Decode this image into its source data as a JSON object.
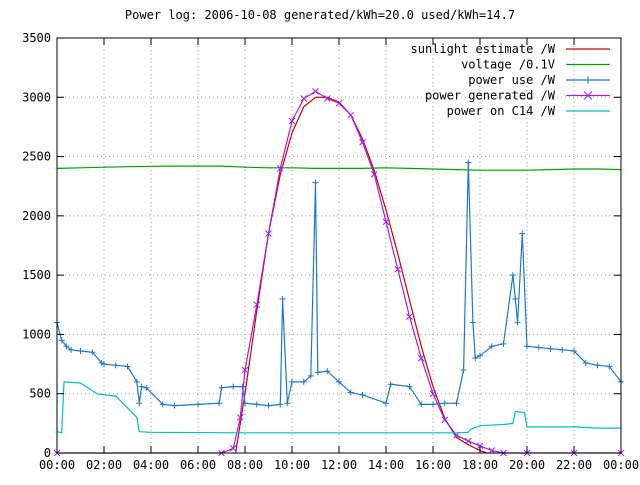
{
  "chart_data": {
    "type": "line",
    "title": "Power log: 2006-10-08 generated/kWh=20.0 used/kWh=14.7",
    "xlabel": "",
    "ylabel": "",
    "x_ticks": [
      "00:00",
      "02:00",
      "04:00",
      "06:00",
      "08:00",
      "10:00",
      "12:00",
      "14:00",
      "16:00",
      "18:00",
      "20:00",
      "22:00",
      "00:00"
    ],
    "xlim_hours": [
      0,
      24
    ],
    "ylim": [
      0,
      3500
    ],
    "y_ticks": [
      0,
      500,
      1000,
      1500,
      2000,
      2500,
      3000,
      3500
    ],
    "grid": true,
    "legend_position": "top-right",
    "series": [
      {
        "name": "sunlight estimate /W",
        "color": "#cc0000",
        "marker": "none",
        "x": [
          7.6,
          8.0,
          8.5,
          9.0,
          9.5,
          10.0,
          10.5,
          11.0,
          11.5,
          12.0,
          12.5,
          13.0,
          13.5,
          14.0,
          14.5,
          15.0,
          15.5,
          16.0,
          16.5,
          17.0,
          17.5,
          18.0,
          18.3
        ],
        "values": [
          0,
          500,
          1200,
          1850,
          2350,
          2700,
          2920,
          3000,
          3000,
          2960,
          2850,
          2650,
          2380,
          2050,
          1680,
          1290,
          900,
          560,
          290,
          130,
          70,
          20,
          0
        ]
      },
      {
        "name": "voltage /0.1V",
        "color": "#00a000",
        "marker": "none",
        "x": [
          0,
          1,
          2,
          3,
          4,
          5,
          6,
          7,
          8,
          9,
          10,
          11,
          12,
          13,
          14,
          15,
          16,
          17,
          18,
          19,
          20,
          21,
          22,
          23,
          24
        ],
        "values": [
          2400,
          2405,
          2410,
          2415,
          2418,
          2420,
          2420,
          2420,
          2410,
          2405,
          2405,
          2400,
          2400,
          2400,
          2405,
          2400,
          2395,
          2390,
          2385,
          2385,
          2385,
          2390,
          2395,
          2395,
          2390
        ]
      },
      {
        "name": "power use /W",
        "color": "#1e78d2",
        "marker": "plus",
        "x": [
          0,
          0.2,
          0.4,
          0.6,
          1.0,
          1.5,
          1.9,
          2.0,
          2.5,
          3.0,
          3.4,
          3.5,
          3.6,
          3.8,
          4.5,
          5.0,
          6.0,
          6.9,
          7.0,
          7.5,
          7.9,
          8.0,
          8.5,
          9.0,
          9.5,
          9.6,
          9.8,
          10.0,
          10.5,
          10.8,
          11.0,
          11.1,
          11.5,
          12.0,
          12.5,
          13.0,
          14.0,
          14.2,
          15.0,
          15.5,
          16.0,
          16.5,
          17.0,
          17.3,
          17.5,
          17.7,
          17.8,
          18.0,
          18.5,
          19.0,
          19.4,
          19.5,
          19.6,
          19.8,
          20.0,
          20.5,
          21.0,
          21.5,
          22.0,
          22.5,
          23.0,
          23.5,
          24.0
        ],
        "values": [
          1100,
          950,
          900,
          870,
          860,
          850,
          760,
          750,
          740,
          730,
          600,
          420,
          560,
          550,
          410,
          400,
          410,
          420,
          550,
          560,
          560,
          420,
          410,
          400,
          410,
          1300,
          420,
          600,
          600,
          650,
          2280,
          680,
          690,
          600,
          510,
          490,
          420,
          580,
          560,
          410,
          410,
          420,
          420,
          700,
          2450,
          1100,
          800,
          820,
          900,
          920,
          1500,
          1300,
          1100,
          1850,
          900,
          890,
          880,
          870,
          860,
          760,
          740,
          730,
          600
        ]
      },
      {
        "name": "power generated /W",
        "color": "#a020f0",
        "marker": "x",
        "x": [
          0,
          7.0,
          7.5,
          7.8,
          8.0,
          8.5,
          9.0,
          9.5,
          10.0,
          10.5,
          11.0,
          11.5,
          12.0,
          12.5,
          13.0,
          13.5,
          14.0,
          14.5,
          15.0,
          15.5,
          16.0,
          16.5,
          17.0,
          17.5,
          18.0,
          18.5,
          19.0,
          20.0,
          22.0,
          24.0
        ],
        "values": [
          0,
          0,
          40,
          300,
          700,
          1250,
          1850,
          2400,
          2800,
          2990,
          3050,
          2990,
          2950,
          2850,
          2620,
          2350,
          1950,
          1550,
          1150,
          800,
          500,
          280,
          150,
          100,
          60,
          20,
          0,
          0,
          0,
          0
        ]
      },
      {
        "name": "power on C14 /W",
        "color": "#00c0c0",
        "marker": "none",
        "x": [
          0,
          0.2,
          0.3,
          1.0,
          1.7,
          2.0,
          2.5,
          3.4,
          3.5,
          4.0,
          8.0,
          12.0,
          17.0,
          17.5,
          17.6,
          18.0,
          19.0,
          19.4,
          19.5,
          19.9,
          20.0,
          21.0,
          22.0,
          23.0,
          24.0
        ],
        "values": [
          180,
          170,
          600,
          590,
          500,
          490,
          480,
          300,
          180,
          175,
          170,
          170,
          170,
          175,
          200,
          230,
          240,
          250,
          350,
          340,
          220,
          220,
          220,
          210,
          210
        ]
      }
    ]
  }
}
